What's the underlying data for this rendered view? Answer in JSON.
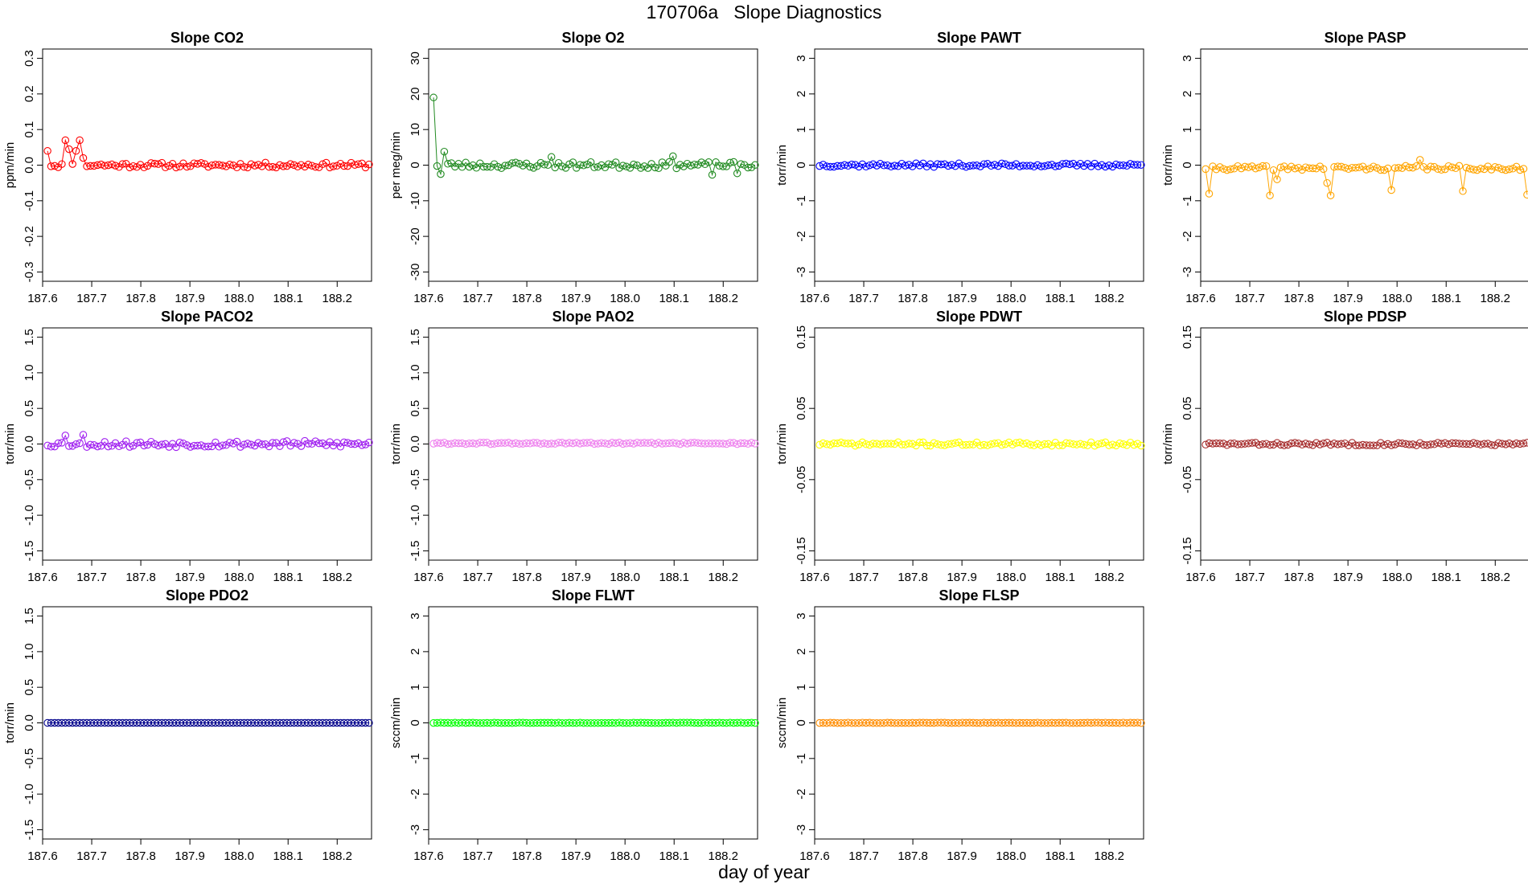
{
  "page_title": "170706a   Slope Diagnostics",
  "x_axis_label": "day of year",
  "chart_data": [
    {
      "type": "scatter",
      "title": "Slope CO2",
      "ylabel": "ppm/min",
      "color": "#ff0000",
      "ylim": [
        -0.3,
        0.3
      ],
      "yticks": [
        "-0.3",
        "-0.2",
        "-0.1",
        "0.0",
        "0.1",
        "0.2",
        "0.3"
      ],
      "xlim": [
        187.6,
        188.27
      ],
      "xticks": [
        "187.6",
        "187.7",
        "187.8",
        "187.9",
        "188.0",
        "188.1",
        "188.2"
      ],
      "x_start": 187.61,
      "x_end": 188.265,
      "n": 91,
      "base": 0,
      "noise": 0.007,
      "seed": 11,
      "connected": true,
      "outliers": [
        [
          187.61,
          0.04
        ],
        [
          187.645,
          0.07
        ],
        [
          187.657,
          0.045
        ],
        [
          187.673,
          0.07
        ],
        [
          187.665,
          0.04
        ],
        [
          187.68,
          0.02
        ]
      ]
    },
    {
      "type": "scatter",
      "title": "Slope O2",
      "ylabel": "per meg/min",
      "color": "#228b22",
      "ylim": [
        -30,
        30
      ],
      "yticks": [
        "-30",
        "-20",
        "-10",
        "0",
        "10",
        "20",
        "30"
      ],
      "xlim": [
        187.6,
        188.27
      ],
      "xticks": [
        "187.6",
        "187.7",
        "187.8",
        "187.9",
        "188.0",
        "188.1",
        "188.2"
      ],
      "x_start": 187.61,
      "x_end": 188.265,
      "n": 91,
      "base": 0,
      "noise": 0.9,
      "seed": 23,
      "connected": true,
      "outliers": [
        [
          187.61,
          19
        ],
        [
          187.632,
          3.8
        ],
        [
          187.625,
          -2.5
        ],
        [
          188.1,
          2.5
        ],
        [
          188.18,
          -2.7
        ],
        [
          188.23,
          -2.3
        ],
        [
          187.85,
          2.3
        ]
      ]
    },
    {
      "type": "scatter",
      "title": "Slope PAWT",
      "ylabel": "torr/min",
      "color": "#0000ff",
      "ylim": [
        -3,
        3
      ],
      "yticks": [
        "-3",
        "-2",
        "-1",
        "0",
        "1",
        "2",
        "3"
      ],
      "xlim": [
        187.6,
        188.27
      ],
      "xticks": [
        "187.6",
        "187.7",
        "187.8",
        "187.9",
        "188.0",
        "188.1",
        "188.2"
      ],
      "x_start": 187.61,
      "x_end": 188.265,
      "n": 91,
      "base": 0,
      "noise": 0.05,
      "seed": 37,
      "connected": true,
      "outliers": []
    },
    {
      "type": "scatter",
      "title": "Slope PASP",
      "ylabel": "torr/min",
      "color": "#ffa500",
      "ylim": [
        -3,
        3
      ],
      "yticks": [
        "-3",
        "-2",
        "-1",
        "0",
        "1",
        "2",
        "3"
      ],
      "xlim": [
        187.6,
        188.27
      ],
      "xticks": [
        "187.6",
        "187.7",
        "187.8",
        "187.9",
        "188.0",
        "188.1",
        "188.2"
      ],
      "x_start": 187.61,
      "x_end": 188.265,
      "n": 91,
      "base": -0.08,
      "noise": 0.06,
      "seed": 41,
      "connected": true,
      "outliers": [
        [
          187.615,
          -0.8
        ],
        [
          187.74,
          -0.85
        ],
        [
          187.865,
          -0.85
        ],
        [
          187.99,
          -0.7
        ],
        [
          188.135,
          -0.73
        ],
        [
          188.265,
          -0.83
        ],
        [
          187.86,
          -0.5
        ],
        [
          187.755,
          -0.4
        ],
        [
          188.05,
          0.15
        ]
      ]
    },
    {
      "type": "scatter",
      "title": "Slope PACO2",
      "ylabel": "torr/min",
      "color": "#a020f0",
      "ylim": [
        -1.5,
        1.5
      ],
      "yticks": [
        "-1.5",
        "-1.0",
        "-0.5",
        "0.0",
        "0.5",
        "1.0",
        "1.5"
      ],
      "xlim": [
        187.6,
        188.27
      ],
      "xticks": [
        "187.6",
        "187.7",
        "187.8",
        "187.9",
        "188.0",
        "188.1",
        "188.2"
      ],
      "x_start": 187.61,
      "x_end": 188.265,
      "n": 91,
      "base": 0,
      "noise": 0.045,
      "seed": 53,
      "connected": true,
      "outliers": [
        [
          187.65,
          0.12
        ],
        [
          187.685,
          0.13
        ]
      ]
    },
    {
      "type": "scatter",
      "title": "Slope PAO2",
      "ylabel": "torr/min",
      "color": "#ee82ee",
      "ylim": [
        -1.5,
        1.5
      ],
      "yticks": [
        "-1.5",
        "-1.0",
        "-0.5",
        "0.0",
        "0.5",
        "1.0",
        "1.5"
      ],
      "xlim": [
        187.6,
        188.27
      ],
      "xticks": [
        "187.6",
        "187.7",
        "187.8",
        "187.9",
        "188.0",
        "188.1",
        "188.2"
      ],
      "x_start": 187.61,
      "x_end": 188.265,
      "n": 91,
      "base": 0.01,
      "noise": 0.012,
      "seed": 61,
      "connected": true,
      "outliers": []
    },
    {
      "type": "scatter",
      "title": "Slope PDWT",
      "ylabel": "torr/min",
      "color": "#ffff00",
      "ylim": [
        -0.15,
        0.15
      ],
      "yticks": [
        "-0.15",
        "-0.05",
        "0.05",
        "0.15"
      ],
      "xlim": [
        187.6,
        188.27
      ],
      "xticks": [
        "187.6",
        "187.7",
        "187.8",
        "187.9",
        "188.0",
        "188.1",
        "188.2"
      ],
      "x_start": 187.61,
      "x_end": 188.265,
      "n": 91,
      "base": 0,
      "noise": 0.0025,
      "seed": 71,
      "connected": true,
      "outliers": []
    },
    {
      "type": "scatter",
      "title": "Slope PDSP",
      "ylabel": "torr/min",
      "color": "#a52a2a",
      "ylim": [
        -0.15,
        0.15
      ],
      "yticks": [
        "-0.15",
        "-0.05",
        "0.05",
        "0.15"
      ],
      "xlim": [
        187.6,
        188.27
      ],
      "xticks": [
        "187.6",
        "187.7",
        "187.8",
        "187.9",
        "188.0",
        "188.1",
        "188.2"
      ],
      "x_start": 187.61,
      "x_end": 188.265,
      "n": 91,
      "base": 0,
      "noise": 0.002,
      "seed": 83,
      "connected": true,
      "outliers": []
    },
    {
      "type": "scatter",
      "title": "Slope PDO2",
      "ylabel": "torr/min",
      "color": "#00008b",
      "ylim": [
        -1.5,
        1.5
      ],
      "yticks": [
        "-1.5",
        "-1.0",
        "-0.5",
        "0.0",
        "0.5",
        "1.0",
        "1.5"
      ],
      "xlim": [
        187.6,
        188.27
      ],
      "xticks": [
        "187.6",
        "187.7",
        "187.8",
        "187.9",
        "188.0",
        "188.1",
        "188.2"
      ],
      "x_start": 187.61,
      "x_end": 188.265,
      "n": 91,
      "base": 0,
      "noise": 0,
      "seed": 97,
      "connected": true,
      "outliers": []
    },
    {
      "type": "scatter",
      "title": "Slope FLWT",
      "ylabel": "sccm/min",
      "color": "#00ff00",
      "ylim": [
        -3,
        3
      ],
      "yticks": [
        "-3",
        "-2",
        "-1",
        "0",
        "1",
        "2",
        "3"
      ],
      "xlim": [
        187.6,
        188.27
      ],
      "xticks": [
        "187.6",
        "187.7",
        "187.8",
        "187.9",
        "188.0",
        "188.1",
        "188.2"
      ],
      "x_start": 187.61,
      "x_end": 188.265,
      "n": 91,
      "base": 0,
      "noise": 0.006,
      "seed": 101,
      "connected": true,
      "outliers": []
    },
    {
      "type": "scatter",
      "title": "Slope FLSP",
      "ylabel": "sccm/min",
      "color": "#ff8c00",
      "ylim": [
        -3,
        3
      ],
      "yticks": [
        "-3",
        "-2",
        "-1",
        "0",
        "1",
        "2",
        "3"
      ],
      "xlim": [
        187.6,
        188.27
      ],
      "xticks": [
        "187.6",
        "187.7",
        "187.8",
        "187.9",
        "188.0",
        "188.1",
        "188.2"
      ],
      "x_start": 187.61,
      "x_end": 188.265,
      "n": 91,
      "base": 0,
      "noise": 0.006,
      "seed": 113,
      "connected": true,
      "outliers": []
    }
  ]
}
